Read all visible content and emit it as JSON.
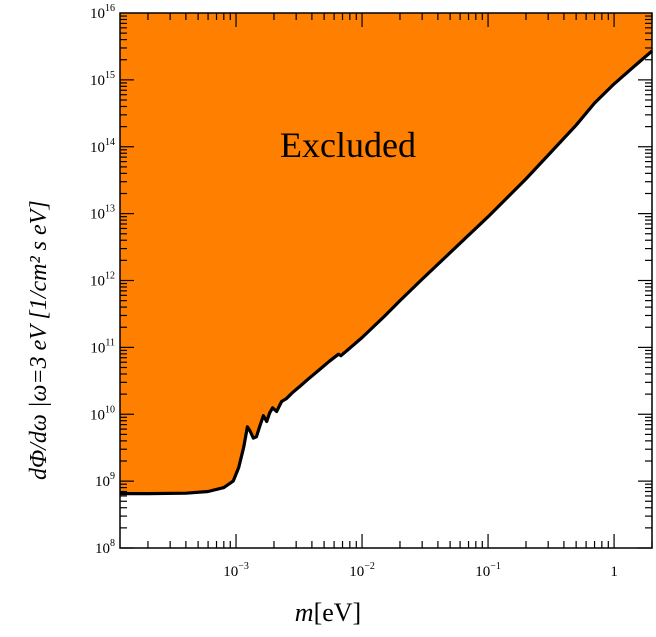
{
  "chart_data": {
    "type": "area",
    "title": "",
    "xlabel": {
      "var": "m",
      "unit": "[eV]"
    },
    "ylabel": "dΦ/dω |ω=3 eV [1/cm² s eV]",
    "xscale": "log",
    "yscale": "log",
    "xlim": [
      0.00012,
      2.0
    ],
    "ylim": [
      100000000.0,
      1e+16
    ],
    "grid": false,
    "x_ticks": [
      {
        "value": 0.001,
        "base": "10",
        "exp": "−3"
      },
      {
        "value": 0.01,
        "base": "10",
        "exp": "−2"
      },
      {
        "value": 0.1,
        "base": "10",
        "exp": "−1"
      },
      {
        "value": 1,
        "base": "1",
        "exp": ""
      }
    ],
    "y_ticks": [
      {
        "value": 100000000.0,
        "base": "10",
        "exp": "8"
      },
      {
        "value": 1000000000.0,
        "base": "10",
        "exp": "9"
      },
      {
        "value": 10000000000.0,
        "base": "10",
        "exp": "10"
      },
      {
        "value": 100000000000.0,
        "base": "10",
        "exp": "11"
      },
      {
        "value": 1000000000000.0,
        "base": "10",
        "exp": "12"
      },
      {
        "value": 10000000000000.0,
        "base": "10",
        "exp": "13"
      },
      {
        "value": 100000000000000.0,
        "base": "10",
        "exp": "14"
      },
      {
        "value": 1000000000000000.0,
        "base": "10",
        "exp": "15"
      },
      {
        "value": 1e+16,
        "base": "10",
        "exp": "16"
      }
    ],
    "region_label": "Excluded",
    "fill_color": "#ff8000",
    "boundary_color": "#000000",
    "boundary": {
      "x": [
        0.00012,
        0.0002,
        0.0004,
        0.0006,
        0.0008,
        0.00095,
        0.00105,
        0.00115,
        0.00123,
        0.0013,
        0.00137,
        0.00145,
        0.00155,
        0.00165,
        0.00175,
        0.00185,
        0.00195,
        0.0021,
        0.0023,
        0.0025,
        0.0028,
        0.0032,
        0.0037,
        0.0045,
        0.0055,
        0.0065,
        0.0068,
        0.0075,
        0.01,
        0.015,
        0.02,
        0.03,
        0.05,
        0.1,
        0.2,
        0.3,
        0.5,
        0.7,
        1.0,
        1.5,
        2.0
      ],
      "y": [
        650000000.0,
        650000000.0,
        660000000.0,
        700000000.0,
        800000000.0,
        1000000000.0,
        1600000000.0,
        3200000000.0,
        6500000000.0,
        5500000000.0,
        4400000000.0,
        4600000000.0,
        6800000000.0,
        9500000000.0,
        7800000000.0,
        10500000000.0,
        12500000000.0,
        11000000000.0,
        15500000000.0,
        17000000000.0,
        21000000000.0,
        26000000000.0,
        33000000000.0,
        45000000000.0,
        62000000000.0,
        79000000000.0,
        75000000000.0,
        88000000000.0,
        140000000000.0,
        290000000000.0,
        500000000000.0,
        1050000000000.0,
        2600000000000.0,
        9000000000000.0,
        33000000000000.0,
        75000000000000.0,
        210000000000000.0,
        450000000000000.0,
        870000000000000.0,
        1700000000000000.0,
        2700000000000000.0
      ]
    }
  }
}
